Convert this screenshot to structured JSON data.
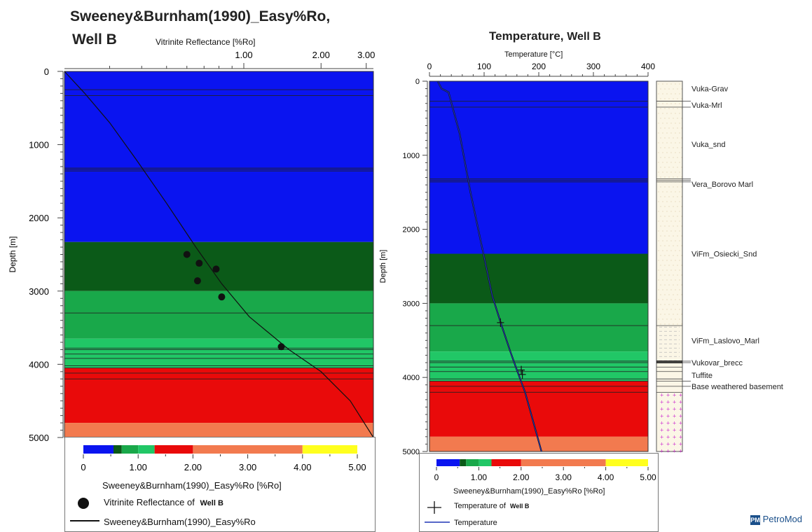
{
  "left": {
    "title_line1": "Sweeney&Burnham(1990)_Easy%Ro,",
    "title_line2": "Well B",
    "top_axis_label": "Vitrinite Reflectance [%Ro]",
    "top_ticks": [
      "1.00",
      "2.00",
      "3.00"
    ],
    "y_label": "Depth [m]",
    "y_ticks": [
      "0",
      "1000",
      "2000",
      "3000",
      "4000",
      "5000"
    ],
    "scale_ticks": [
      "0",
      "1.00",
      "2.00",
      "3.00",
      "4.00",
      "5.00"
    ],
    "scale_label": "Sweeney&Burnham(1990)_Easy%Ro [%Ro]",
    "legend_points": "Vitrinite Reflectance of",
    "legend_points_well": "Well B",
    "legend_line": "Sweeney&Burnham(1990)_Easy%Ro"
  },
  "right": {
    "title": "Temperature,",
    "title_well": "Well B",
    "top_axis_label": "Temperature [°C]",
    "top_ticks": [
      "0",
      "100",
      "200",
      "300",
      "400"
    ],
    "y_label": "Depth [m]",
    "y_ticks": [
      "0",
      "1000",
      "2000",
      "3000",
      "4000",
      "5000"
    ],
    "scale_ticks": [
      "0",
      "1.00",
      "2.00",
      "3.00",
      "4.00",
      "5.00"
    ],
    "scale_label": "Sweeney&Burnham(1990)_Easy%Ro [%Ro]",
    "legend_points": "Temperature of",
    "legend_points_well": "Well B",
    "legend_line": "Temperature"
  },
  "formations": [
    {
      "name": "Vuka-Grav",
      "depth": 100
    },
    {
      "name": "Vuka-Mrl",
      "depth": 320
    },
    {
      "name": "Vuka_snd",
      "depth": 850
    },
    {
      "name": "Vera_Borovo Marl",
      "depth": 1390
    },
    {
      "name": "ViFm_Osiecki_Snd",
      "depth": 2330
    },
    {
      "name": "ViFm_Laslovo_Marl",
      "depth": 3500
    },
    {
      "name": "Vukovar_brecc",
      "depth": 3800
    },
    {
      "name": "Tuffite",
      "depth": 3970
    },
    {
      "name": "Base weathered basement",
      "depth": 4120
    }
  ],
  "branding": "PetroMod",
  "colors": {
    "blue": "#0a14f0",
    "dark_green": "#0b5a18",
    "green": "#19a84a",
    "light_green": "#21c766",
    "red": "#e90a0a",
    "salmon": "#f27a4f",
    "yellow": "#ffff1e",
    "line": "#111111",
    "temp_line": "#1f35b5"
  },
  "chart_data": [
    {
      "type": "line",
      "title": "Sweeney&Burnham(1990)_Easy%Ro, Well B",
      "xlabel": "Vitrinite Reflectance [%Ro]",
      "ylabel": "Depth [m]",
      "x_scale": "log",
      "xlim": [
        0.2,
        3.2
      ],
      "ylim": [
        5000,
        0
      ],
      "x_ticks": [
        "1.00",
        "2.00",
        "3.00"
      ],
      "y_ticks": [
        "0",
        "1000",
        "2000",
        "3000",
        "4000",
        "5000"
      ],
      "series": [
        {
          "name": "Sweeney&Burnham(1990)_Easy%Ro",
          "style": "line",
          "x": [
            0.2,
            0.24,
            0.3,
            0.38,
            0.5,
            0.65,
            0.82,
            1.05,
            1.5,
            2.0,
            2.6,
            3.2
          ],
          "y": [
            0,
            300,
            700,
            1200,
            1800,
            2400,
            2900,
            3350,
            3800,
            4100,
            4500,
            5000
          ]
        },
        {
          "name": "Vitrinite Reflectance of Well B",
          "style": "points",
          "x": [
            0.6,
            0.67,
            0.78,
            0.66,
            0.82,
            1.4
          ],
          "y": [
            2500,
            2620,
            2700,
            2860,
            3080,
            3760
          ]
        }
      ],
      "background_layers": [
        {
          "from": 0,
          "to": 2330,
          "color": "#0a14f0"
        },
        {
          "from": 2330,
          "to": 3000,
          "color": "#0b5a18"
        },
        {
          "from": 3000,
          "to": 3650,
          "color": "#19a84a"
        },
        {
          "from": 3650,
          "to": 4050,
          "color": "#21c766"
        },
        {
          "from": 4050,
          "to": 4800,
          "color": "#e90a0a"
        },
        {
          "from": 4800,
          "to": 5000,
          "color": "#f27a4f"
        }
      ],
      "horizon_lines": [
        250,
        330,
        1320,
        1340,
        1360,
        3300,
        3780,
        3800,
        3860,
        3920,
        4020,
        4050,
        4120,
        4200
      ],
      "scale_bar": {
        "range": [
          0,
          5
        ],
        "segments": [
          {
            "from": 0,
            "to": 0.55,
            "color": "#0a14f0"
          },
          {
            "from": 0.55,
            "to": 0.7,
            "color": "#0b5a18"
          },
          {
            "from": 0.7,
            "to": 1.0,
            "color": "#19a84a"
          },
          {
            "from": 1.0,
            "to": 1.3,
            "color": "#21c766"
          },
          {
            "from": 1.3,
            "to": 2.0,
            "color": "#e90a0a"
          },
          {
            "from": 2.0,
            "to": 4.0,
            "color": "#f27a4f"
          },
          {
            "from": 4.0,
            "to": 5.0,
            "color": "#ffff1e"
          }
        ]
      }
    },
    {
      "type": "line",
      "title": "Temperature, Well B",
      "xlabel": "Temperature [°C]",
      "ylabel": "Depth [m]",
      "xlim": [
        0,
        400
      ],
      "ylim": [
        5000,
        0
      ],
      "x_ticks": [
        "0",
        "100",
        "200",
        "300",
        "400"
      ],
      "y_ticks": [
        "0",
        "1000",
        "2000",
        "3000",
        "4000",
        "5000"
      ],
      "series": [
        {
          "name": "Temperature",
          "style": "line",
          "x": [
            15,
            22,
            35,
            55,
            75,
            95,
            115,
            132,
            148,
            160,
            175,
            190,
            205
          ],
          "y": [
            0,
            100,
            150,
            700,
            1500,
            2200,
            2900,
            3300,
            3650,
            3900,
            4200,
            4600,
            5000
          ]
        },
        {
          "name": "Temperature of Well B",
          "style": "cross",
          "x": [
            130,
            168,
            170
          ],
          "y": [
            3260,
            3900,
            3960
          ]
        }
      ],
      "background_layers": [
        {
          "from": 0,
          "to": 2330,
          "color": "#0a14f0"
        },
        {
          "from": 2330,
          "to": 3000,
          "color": "#0b5a18"
        },
        {
          "from": 3000,
          "to": 3650,
          "color": "#19a84a"
        },
        {
          "from": 3650,
          "to": 4050,
          "color": "#21c766"
        },
        {
          "from": 4050,
          "to": 4800,
          "color": "#e90a0a"
        },
        {
          "from": 4800,
          "to": 5000,
          "color": "#f27a4f"
        }
      ],
      "horizon_lines": [
        270,
        350,
        1320,
        1340,
        1360,
        3300,
        3780,
        3800,
        3860,
        3920,
        4020,
        4050,
        4120,
        4200
      ],
      "scale_bar": {
        "range": [
          0,
          5
        ],
        "segments": [
          {
            "from": 0,
            "to": 0.55,
            "color": "#0a14f0"
          },
          {
            "from": 0.55,
            "to": 0.7,
            "color": "#0b5a18"
          },
          {
            "from": 0.7,
            "to": 1.0,
            "color": "#19a84a"
          },
          {
            "from": 1.0,
            "to": 1.3,
            "color": "#21c766"
          },
          {
            "from": 1.3,
            "to": 2.0,
            "color": "#e90a0a"
          },
          {
            "from": 2.0,
            "to": 4.0,
            "color": "#f27a4f"
          },
          {
            "from": 4.0,
            "to": 5.0,
            "color": "#ffff1e"
          }
        ]
      }
    }
  ]
}
